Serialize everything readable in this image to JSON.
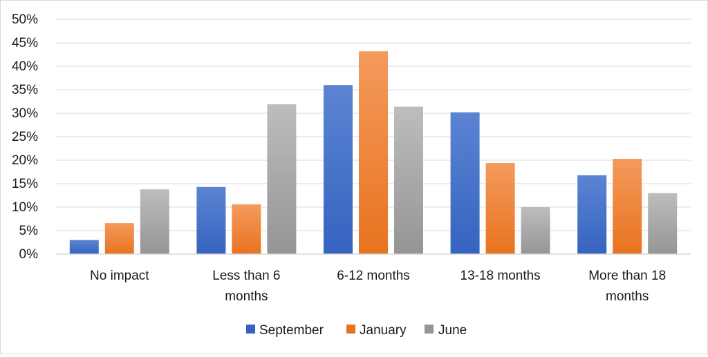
{
  "chart_data": {
    "type": "bar",
    "categories": [
      [
        "No impact"
      ],
      [
        "Less than 6",
        "months"
      ],
      [
        "6-12 months"
      ],
      [
        "13-18 months"
      ],
      [
        "More than 18",
        "months"
      ]
    ],
    "series": [
      {
        "name": "September",
        "values": [
          3,
          14.3,
          36,
          30.2,
          16.8
        ]
      },
      {
        "name": "January",
        "values": [
          6.6,
          10.6,
          43.2,
          19.4,
          20.3
        ]
      },
      {
        "name": "June",
        "values": [
          13.8,
          31.9,
          31.4,
          10,
          13
        ]
      }
    ],
    "ylim": [
      0,
      50
    ],
    "yticks": [
      "0%",
      "5%",
      "10%",
      "15%",
      "20%",
      "25%",
      "30%",
      "35%",
      "40%",
      "45%",
      "50%"
    ],
    "ytick_values": [
      0,
      5,
      10,
      15,
      20,
      25,
      30,
      35,
      40,
      45,
      50
    ],
    "grid": true,
    "legend_position": "bottom",
    "colors": {
      "September": [
        "#5b84d2",
        "#3563bf"
      ],
      "January": [
        "#f49a5c",
        "#e8731f"
      ],
      "June": [
        "#bdbdbd",
        "#959595"
      ],
      "grid": "#d9d9d9"
    }
  }
}
